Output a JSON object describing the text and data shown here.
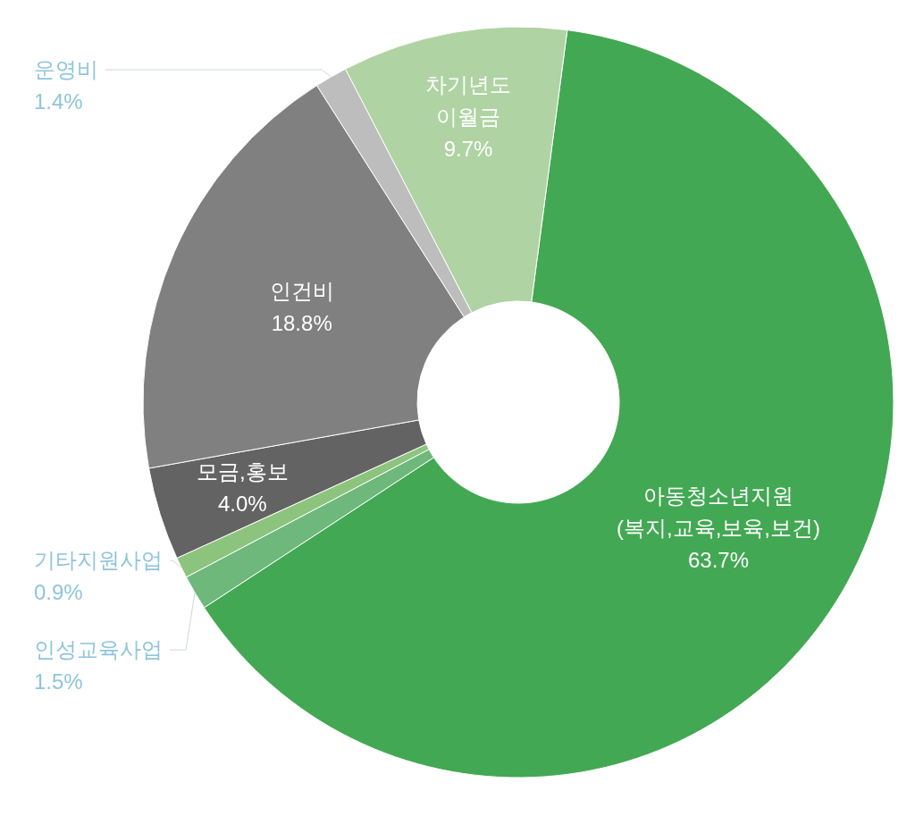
{
  "chart_data": {
    "type": "donut",
    "categories": [
      "아동청소년지원\n(복지,교육,보육,보건)",
      "인성교육사업",
      "기타지원사업",
      "모금,홍보",
      "인건비",
      "운영비",
      "차기년도\n이월금"
    ],
    "values": [
      63.7,
      1.5,
      0.9,
      4.0,
      18.8,
      1.4,
      9.7
    ],
    "value_labels": [
      "63.7%",
      "1.5%",
      "0.9%",
      "4.0%",
      "18.8%",
      "1.4%",
      "9.7%"
    ],
    "colors": [
      "#43a853",
      "#6db87a",
      "#8cc47d",
      "#636363",
      "#808080",
      "#bdbdbd",
      "#afd3a3"
    ]
  }
}
